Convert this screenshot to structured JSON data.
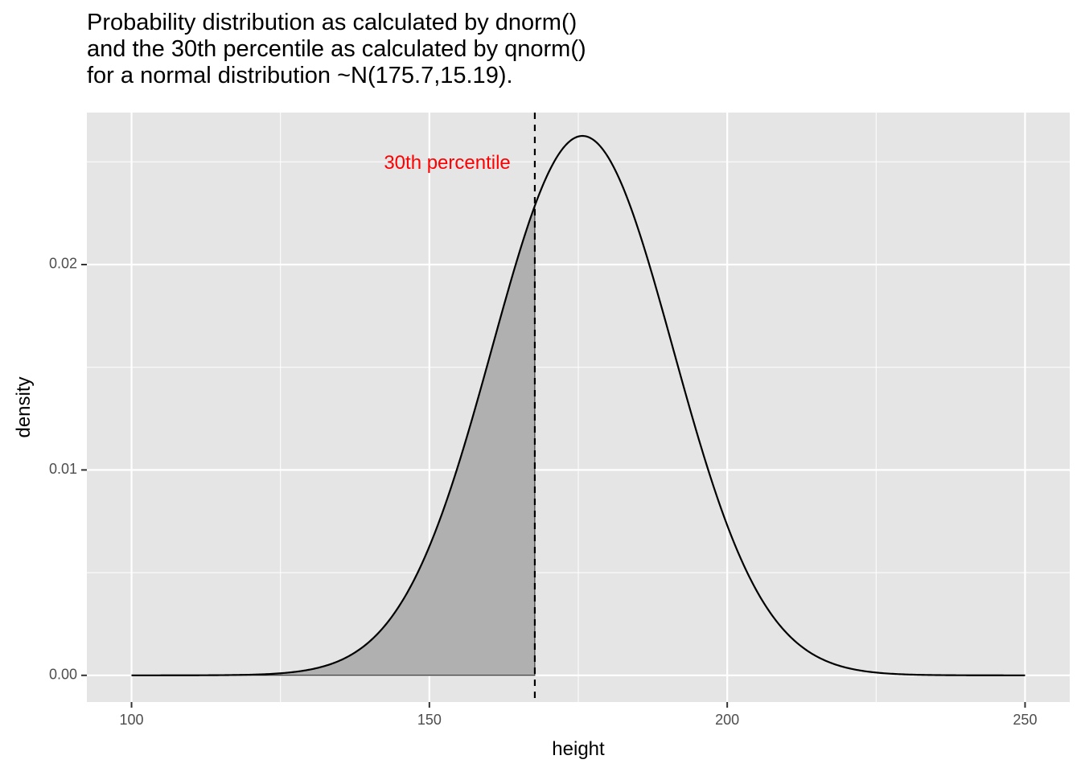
{
  "chart_data": {
    "type": "area",
    "title_lines": [
      "Probability distribution as calculated by dnorm()",
      "and the 30th percentile as calculated by qnorm()",
      "for a normal distribution ~N(175.7,15.19)."
    ],
    "xlabel": "height",
    "ylabel": "density",
    "xlim": [
      92.5,
      257.5
    ],
    "ylim": [
      -0.0013,
      0.0274
    ],
    "x_ticks": [
      100,
      150,
      200,
      250
    ],
    "x_tick_labels": [
      "100",
      "150",
      "200",
      "250"
    ],
    "y_ticks": [
      0.0,
      0.01,
      0.02
    ],
    "y_tick_labels": [
      "0.00",
      "0.01",
      "0.02"
    ],
    "distribution": {
      "mean": 175.7,
      "sd": 15.19,
      "x_range": [
        100,
        250
      ]
    },
    "percentile_line": {
      "x": 167.7,
      "style": "dashed"
    },
    "shaded_region": {
      "from": 100,
      "to": 167.7,
      "fill": "#b0b0b0"
    },
    "annotation": {
      "text": "30th percentile",
      "x": 153,
      "y": 0.0249,
      "color": "#ff0000"
    },
    "grid": true,
    "legend": "none",
    "colors": {
      "panel": "#e5e5e5",
      "grid": "#ffffff",
      "curve": "#000000"
    }
  }
}
